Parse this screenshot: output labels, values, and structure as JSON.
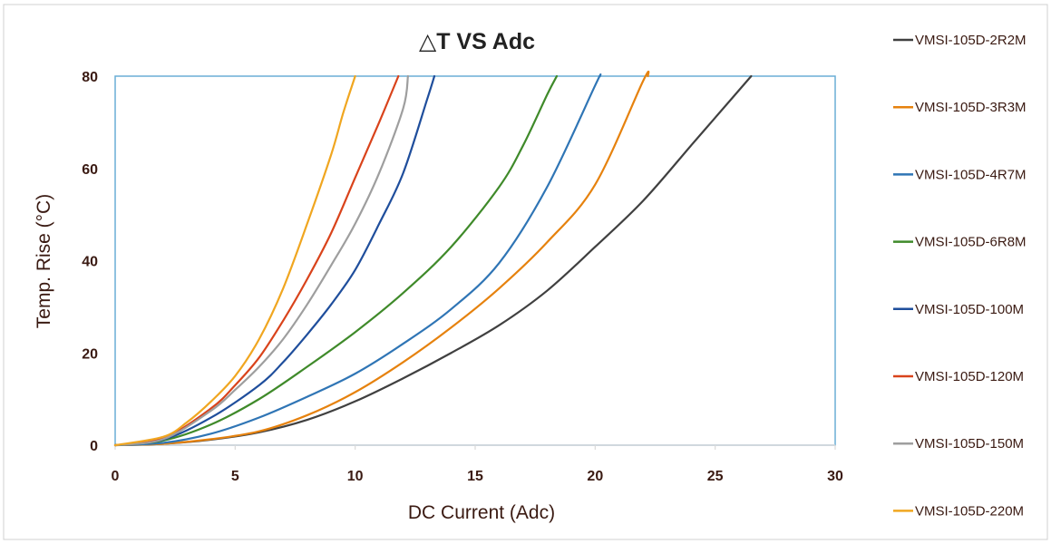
{
  "chart_data": {
    "type": "line",
    "title": "△T VS Adc",
    "xlabel": "DC Current (Adc)",
    "ylabel": "Temp. Rise (°C)",
    "xlim": [
      0,
      30
    ],
    "ylim": [
      0,
      80
    ],
    "xticks": [
      "0",
      "5",
      "10",
      "15",
      "20",
      "25",
      "30"
    ],
    "yticks": [
      "0",
      "20",
      "40",
      "60",
      "80"
    ],
    "grid": false,
    "legend_position": "right",
    "colors": {
      "plot_border": "#6aaed6",
      "axis_line": "#d9d9d9",
      "text": "#3a1a12"
    },
    "series": [
      {
        "name": "VMSI-105D-2R2M",
        "color": "#404040",
        "x": [
          0,
          2,
          4,
          6,
          8,
          10,
          12,
          14,
          16,
          18,
          20,
          22,
          24,
          25,
          26.5
        ],
        "y": [
          0,
          0.3,
          1.2,
          2.8,
          5.5,
          9.5,
          14.5,
          20,
          26,
          33.5,
          43,
          53,
          65,
          71,
          80
        ]
      },
      {
        "name": "VMSI-105D-3R3M",
        "color": "#e6820e",
        "x": [
          0,
          2,
          4,
          6,
          8,
          10,
          12,
          14,
          16,
          18,
          20,
          22,
          22.2
        ],
        "y": [
          0,
          0.3,
          1.3,
          3,
          6.5,
          11.5,
          18,
          25.5,
          34,
          44,
          56.5,
          79,
          80
        ]
      },
      {
        "name": "VMSI-105D-4R7M",
        "color": "#2f75b5",
        "x": [
          0,
          2,
          4,
          6,
          8,
          10,
          12,
          14,
          16,
          18,
          20,
          20.2
        ],
        "y": [
          0,
          0.5,
          2.5,
          6,
          10.5,
          15.5,
          22,
          29.5,
          39.5,
          56,
          78,
          80
        ]
      },
      {
        "name": "VMSI-105D-6R8M",
        "color": "#3f8a2a",
        "x": [
          0,
          2,
          4,
          6,
          8,
          10,
          12,
          14,
          16,
          17,
          18,
          18.4
        ],
        "y": [
          0,
          1,
          4.5,
          10,
          17,
          24.5,
          33,
          43,
          56,
          65,
          76,
          80
        ]
      },
      {
        "name": "VMSI-105D-100M",
        "color": "#1f4e9c",
        "x": [
          0,
          2,
          4,
          6,
          7,
          8,
          9,
          10,
          11,
          12,
          13,
          13.3
        ],
        "y": [
          0,
          1.2,
          6,
          13,
          18,
          24,
          30.5,
          38,
          48,
          59,
          75,
          80
        ]
      },
      {
        "name": "VMSI-105D-120M",
        "color": "#d9431b",
        "x": [
          0,
          2,
          4,
          5,
          6,
          7,
          8,
          9,
          10,
          11,
          11.8
        ],
        "y": [
          0,
          1.5,
          8,
          13,
          19,
          27,
          36,
          46,
          58,
          70,
          80
        ]
      },
      {
        "name": "VMSI-105D-150M",
        "color": "#9e9e9e",
        "x": [
          0,
          2,
          4,
          5,
          6,
          7,
          8,
          9,
          10,
          11,
          12,
          12.2
        ],
        "y": [
          0,
          1.3,
          7.5,
          12,
          17,
          23,
          30.5,
          39,
          48,
          59,
          73,
          80
        ]
      },
      {
        "name": "VMSI-105D-220M",
        "color": "#f0a620",
        "x": [
          0,
          2,
          3,
          4,
          5,
          6,
          7,
          8,
          9,
          9.5,
          10
        ],
        "y": [
          0,
          1.8,
          5,
          9.5,
          15,
          23,
          34,
          48,
          63,
          72,
          80
        ]
      }
    ]
  }
}
